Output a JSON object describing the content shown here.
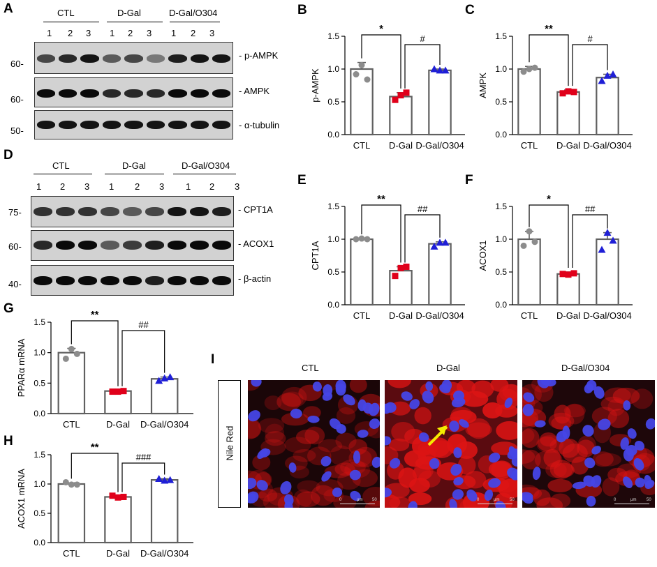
{
  "panel_letters": [
    "A",
    "B",
    "C",
    "D",
    "E",
    "F",
    "G",
    "H",
    "I"
  ],
  "western_A": {
    "groups": [
      "CTL",
      "D-Gal",
      "D-Gal/O304"
    ],
    "lanes": [
      "1",
      "2",
      "3",
      "1",
      "2",
      "3",
      "1",
      "2",
      "3"
    ],
    "blots": [
      {
        "label": "- p-AMPK",
        "marker": "60-"
      },
      {
        "label": "- AMPK",
        "marker": "60-"
      },
      {
        "label": "- α-tubulin",
        "marker": "50-"
      }
    ]
  },
  "western_D": {
    "groups": [
      "CTL",
      "D-Gal",
      "D-Gal/O304"
    ],
    "lanes": [
      "1",
      "2",
      "3",
      "1",
      "2",
      "3",
      "1",
      "2",
      "3"
    ],
    "blots": [
      {
        "label": "- CPT1A",
        "marker": "75-"
      },
      {
        "label": "- ACOX1",
        "marker": "60-"
      },
      {
        "label": "- β-actin",
        "marker": "40-"
      }
    ]
  },
  "chart_data": [
    {
      "panel": "B",
      "type": "bar",
      "ylabel": "p-AMPK",
      "ylim": [
        0,
        1.5
      ],
      "yticks": [
        "0.0",
        "0.5",
        "1.0",
        "1.5"
      ],
      "categories": [
        "CTL",
        "D-Gal",
        "D-Gal/O304"
      ],
      "values": [
        1.0,
        0.58,
        0.98
      ],
      "errors": [
        0.1,
        0.06,
        0.02
      ],
      "points": [
        [
          0.92,
          1.06,
          0.84
        ],
        [
          0.53,
          0.6,
          0.64
        ],
        [
          1.0,
          0.98,
          0.98
        ]
      ],
      "sig1": "*",
      "sig2": "#"
    },
    {
      "panel": "C",
      "type": "bar",
      "ylabel": "AMPK",
      "ylim": [
        0,
        1.5
      ],
      "yticks": [
        "0.0",
        "0.5",
        "1.0",
        "1.5"
      ],
      "categories": [
        "CTL",
        "D-Gal",
        "D-Gal/O304"
      ],
      "values": [
        1.0,
        0.65,
        0.87
      ],
      "errors": [
        0.04,
        0.03,
        0.05
      ],
      "points": [
        [
          0.96,
          1.0,
          1.02
        ],
        [
          0.63,
          0.66,
          0.65
        ],
        [
          0.82,
          0.9,
          0.92
        ]
      ],
      "sig1": "**",
      "sig2": "#"
    },
    {
      "panel": "E",
      "type": "bar",
      "ylabel": "CPT1A",
      "ylim": [
        0,
        1.5
      ],
      "yticks": [
        "0.0",
        "0.5",
        "1.0",
        "1.5"
      ],
      "categories": [
        "CTL",
        "D-Gal",
        "D-Gal/O304"
      ],
      "values": [
        1.0,
        0.52,
        0.93
      ],
      "errors": [
        0.01,
        0.06,
        0.03
      ],
      "points": [
        [
          1.0,
          1.01,
          1.0
        ],
        [
          0.44,
          0.56,
          0.58
        ],
        [
          0.89,
          0.95,
          0.95
        ]
      ],
      "sig1": "**",
      "sig2": "##"
    },
    {
      "panel": "F",
      "type": "bar",
      "ylabel": "ACOX1",
      "ylim": [
        0,
        1.5
      ],
      "yticks": [
        "0.0",
        "0.5",
        "1.0",
        "1.5"
      ],
      "categories": [
        "CTL",
        "D-Gal",
        "D-Gal/O304"
      ],
      "values": [
        1.0,
        0.47,
        1.0
      ],
      "errors": [
        0.12,
        0.03,
        0.1
      ],
      "points": [
        [
          0.9,
          1.12,
          0.96
        ],
        [
          0.47,
          0.46,
          0.48
        ],
        [
          0.84,
          1.1,
          0.98
        ]
      ],
      "sig1": "*",
      "sig2": "##"
    },
    {
      "panel": "G",
      "type": "bar",
      "ylabel": "PPARα  mRNA",
      "ylim": [
        0,
        1.5
      ],
      "yticks": [
        "0.0",
        "0.5",
        "1.0",
        "1.5"
      ],
      "categories": [
        "CTL",
        "D-Gal",
        "D-Gal/O304"
      ],
      "values": [
        1.0,
        0.37,
        0.57
      ],
      "errors": [
        0.07,
        0.01,
        0.03
      ],
      "points": [
        [
          0.9,
          1.06,
          0.98
        ],
        [
          0.36,
          0.36,
          0.37
        ],
        [
          0.54,
          0.58,
          0.6
        ]
      ],
      "sig1": "**",
      "sig2": "##"
    },
    {
      "panel": "H",
      "type": "bar",
      "ylabel": "ACOX1  mRNA",
      "ylim": [
        0,
        1.5
      ],
      "yticks": [
        "0.0",
        "0.5",
        "1.0",
        "1.5"
      ],
      "categories": [
        "CTL",
        "D-Gal",
        "D-Gal/O304"
      ],
      "values": [
        1.0,
        0.78,
        1.07
      ],
      "errors": [
        0.02,
        0.01,
        0.02
      ],
      "points": [
        [
          1.03,
          0.99,
          0.99
        ],
        [
          0.8,
          0.77,
          0.78
        ],
        [
          1.09,
          1.06,
          1.07
        ]
      ],
      "sig1": "**",
      "sig2": "###"
    }
  ],
  "colors": {
    "ctl_marker": "#8c8c8c",
    "dgal_marker": "#e0001a",
    "o304_marker": "#1f1fd6",
    "bar_edge": "#606060"
  },
  "panel_I": {
    "stain_label": "Nile Red",
    "columns": [
      "CTL",
      "D-Gal",
      "D-Gal/O304"
    ],
    "scale_text": [
      "0",
      "μm",
      "50"
    ],
    "arrow_color": "#f4ec00"
  }
}
